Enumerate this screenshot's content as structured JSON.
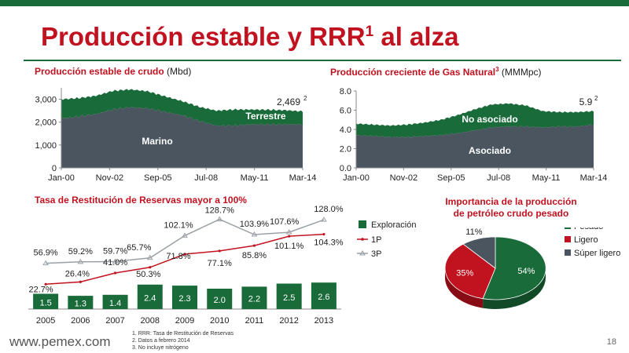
{
  "slide": {
    "title_main": "Producción estable y RRR",
    "title_sup": "1",
    "title_tail": " al alza",
    "site": "www.pemex.com",
    "page": "18",
    "footnotes": [
      "1.   RRR: Tasa de Restitución de Reservas",
      "2.   Datos a febrero 2014",
      "3.   No incluye nitrógeno"
    ],
    "colors": {
      "accent_red": "#c1121f",
      "green": "#1a6b3a",
      "slate": "#4a5560"
    }
  },
  "crude": {
    "title": "Producción estable de crudo",
    "unit": "(Mbd)"
  },
  "gas": {
    "title": "Producción creciente de Gas Natural",
    "title_sup": "3",
    "unit": "(MMMpc)"
  },
  "rrr": {
    "title": "Tasa de Restitución de Reservas mayor a 100%"
  },
  "pie": {
    "title_line1": "Importancia de la producción",
    "title_line2": "de petróleo crudo pesado"
  },
  "chart_data": [
    {
      "type": "area",
      "x_ticks": [
        "Jan-00",
        "Nov-02",
        "Sep-05",
        "Jul-08",
        "May-11",
        "Mar-14"
      ],
      "y_ticks": [
        "0",
        "1,000",
        "2,000",
        "3,000"
      ],
      "ylim": [
        0,
        3500
      ],
      "x": [
        "2000",
        "2001",
        "2002",
        "2003",
        "2004",
        "2005",
        "2006",
        "2007",
        "2008",
        "2009",
        "2010",
        "2011",
        "2012",
        "2013",
        "2014"
      ],
      "series": [
        {
          "name": "Marino",
          "values": [
            2150,
            2250,
            2350,
            2550,
            2650,
            2600,
            2450,
            2300,
            2050,
            1850,
            1850,
            1900,
            1900,
            1900,
            1900
          ]
        },
        {
          "name": "Terrestre",
          "values": [
            850,
            800,
            800,
            820,
            780,
            750,
            680,
            620,
            620,
            650,
            700,
            650,
            640,
            620,
            569
          ]
        }
      ],
      "end_label": "2,469",
      "end_label_sup": "2"
    },
    {
      "type": "area",
      "x_ticks": [
        "Jan-00",
        "Nov-02",
        "Sep-05",
        "Jul-08",
        "May-11",
        "Mar-14"
      ],
      "y_ticks": [
        "0.0",
        "2.0",
        "4.0",
        "6.0",
        "8.0"
      ],
      "ylim": [
        0,
        8
      ],
      "x": [
        "2000",
        "2001",
        "2002",
        "2003",
        "2004",
        "2005",
        "2006",
        "2007",
        "2008",
        "2009",
        "2010",
        "2011",
        "2012",
        "2013",
        "2014"
      ],
      "series": [
        {
          "name": "Asociado",
          "values": [
            3.4,
            3.3,
            3.2,
            3.2,
            3.3,
            3.4,
            3.6,
            3.9,
            4.2,
            4.3,
            4.3,
            4.2,
            4.3,
            4.3,
            4.5
          ]
        },
        {
          "name": "No asociado",
          "values": [
            1.2,
            1.2,
            1.2,
            1.3,
            1.4,
            1.6,
            1.9,
            2.2,
            2.4,
            2.4,
            2.2,
            1.7,
            1.5,
            1.5,
            1.4
          ]
        }
      ],
      "end_label": "5.9",
      "end_label_sup": "2"
    },
    {
      "type": "bar",
      "categories": [
        "2005",
        "2006",
        "2007",
        "2008",
        "2009",
        "2010",
        "2011",
        "2012",
        "2013"
      ],
      "series": [
        {
          "name": "Exploración",
          "values": [
            1.5,
            1.3,
            1.4,
            2.4,
            2.3,
            2.0,
            2.2,
            2.5,
            2.6
          ],
          "labels": [
            "1.5",
            "1.3",
            "1.4",
            "2.4",
            "2.3",
            "2.0",
            "2.2",
            "2.5",
            "2.6"
          ]
        },
        {
          "name": "1P",
          "values": [
            22.7,
            26.4,
            41.0,
            50.3,
            71.8,
            77.1,
            85.8,
            101.1,
            104.3
          ],
          "labels": [
            "22.7%",
            "26.4%",
            "41.0%",
            "50.3%",
            "71.8%",
            "77.1%",
            "85.8%",
            "101.1%",
            "104.3%"
          ]
        },
        {
          "name": "3P",
          "values": [
            56.9,
            59.2,
            59.7,
            65.7,
            102.1,
            128.7,
            103.9,
            107.6,
            128.0
          ],
          "labels": [
            "56.9%",
            "59.2%",
            "59.7%",
            "65.7%",
            "102.1%",
            "128.7%",
            "103.9%",
            "107.6%",
            "128.0%"
          ]
        }
      ]
    },
    {
      "type": "pie",
      "slices": [
        {
          "name": "Pesado",
          "value": 54,
          "label": "54%",
          "color": "#1a6b3a"
        },
        {
          "name": "Ligero",
          "value": 35,
          "label": "35%",
          "color": "#c1121f"
        },
        {
          "name": "Súper ligero",
          "value": 11,
          "label": "11%",
          "color": "#4a5560"
        }
      ]
    }
  ]
}
